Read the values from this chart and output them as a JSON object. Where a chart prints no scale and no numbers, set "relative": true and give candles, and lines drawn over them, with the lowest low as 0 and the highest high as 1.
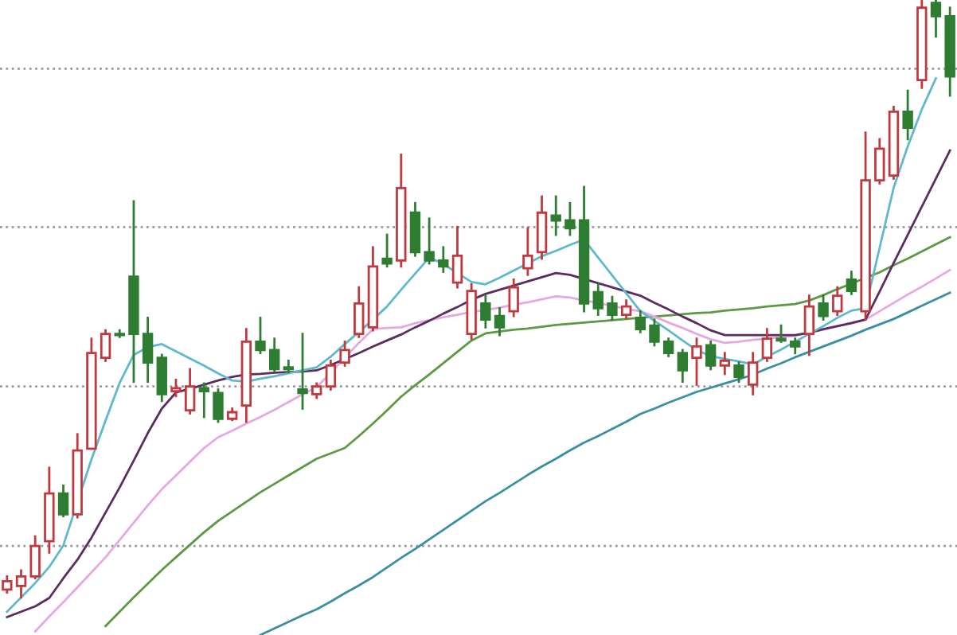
{
  "chart_data": {
    "type": "candlestick",
    "relative": true,
    "categories": [
      null,
      null,
      null,
      null,
      null,
      null,
      null,
      null,
      null,
      null,
      null,
      null,
      null,
      null,
      null,
      null,
      null,
      null,
      null,
      null,
      null,
      null,
      null,
      null,
      null,
      null,
      null,
      null,
      null,
      null,
      null,
      null,
      null,
      null,
      null,
      null,
      null,
      null,
      null,
      null,
      null,
      null,
      null,
      null,
      null,
      null,
      null,
      null,
      null,
      null,
      null,
      null,
      null,
      null,
      null,
      null,
      null,
      null,
      null,
      null,
      null,
      null,
      null,
      null,
      null,
      null,
      null,
      null
    ],
    "ohlc": [
      [
        0.013,
        0.035,
        0.008,
        0.027
      ],
      [
        0.019,
        0.045,
        0.0,
        0.035
      ],
      [
        0.035,
        0.102,
        0.032,
        0.086
      ],
      [
        0.094,
        0.217,
        0.075,
        0.174
      ],
      [
        0.174,
        0.187,
        0.136,
        0.139
      ],
      [
        0.139,
        0.273,
        0.134,
        0.246
      ],
      [
        0.249,
        0.433,
        0.249,
        0.409
      ],
      [
        0.401,
        0.447,
        0.396,
        0.441
      ],
      [
        0.441,
        0.447,
        0.436,
        0.439
      ],
      [
        0.537,
        0.663,
        0.361,
        0.441
      ],
      [
        0.441,
        0.468,
        0.361,
        0.393
      ],
      [
        0.401,
        0.406,
        0.329,
        0.34
      ],
      [
        0.345,
        0.364,
        0.337,
        0.35
      ],
      [
        0.313,
        0.382,
        0.308,
        0.353
      ],
      [
        0.35,
        0.358,
        0.302,
        0.345
      ],
      [
        0.342,
        0.348,
        0.294,
        0.299
      ],
      [
        0.299,
        0.316,
        0.297,
        0.31
      ],
      [
        0.321,
        0.449,
        0.294,
        0.428
      ],
      [
        0.428,
        0.468,
        0.409,
        0.414
      ],
      [
        0.414,
        0.433,
        0.38,
        0.382
      ],
      [
        0.385,
        0.396,
        0.377,
        0.382
      ],
      [
        0.348,
        0.441,
        0.316,
        0.342
      ],
      [
        0.34,
        0.358,
        0.334,
        0.353
      ],
      [
        0.353,
        0.396,
        0.348,
        0.388
      ],
      [
        0.393,
        0.428,
        0.388,
        0.414
      ],
      [
        0.441,
        0.519,
        0.436,
        0.492
      ],
      [
        0.452,
        0.586,
        0.447,
        0.554
      ],
      [
        0.567,
        0.607,
        0.554,
        0.559
      ],
      [
        0.564,
        0.741,
        0.554,
        0.685
      ],
      [
        0.644,
        0.66,
        0.572,
        0.578
      ],
      [
        0.578,
        0.634,
        0.559,
        0.564
      ],
      [
        0.564,
        0.586,
        0.545,
        0.554
      ],
      [
        0.527,
        0.62,
        0.519,
        0.572
      ],
      [
        0.441,
        0.524,
        0.433,
        0.513
      ],
      [
        0.492,
        0.505,
        0.452,
        0.465
      ],
      [
        0.471,
        0.484,
        0.439,
        0.452
      ],
      [
        0.479,
        0.532,
        0.471,
        0.519
      ],
      [
        0.551,
        0.618,
        0.54,
        0.572
      ],
      [
        0.578,
        0.671,
        0.567,
        0.644
      ],
      [
        0.639,
        0.671,
        0.607,
        0.631
      ],
      [
        0.631,
        0.66,
        0.607,
        0.618
      ],
      [
        0.631,
        0.687,
        0.479,
        0.492
      ],
      [
        0.511,
        0.524,
        0.473,
        0.484
      ],
      [
        0.492,
        0.503,
        0.465,
        0.473
      ],
      [
        0.473,
        0.497,
        0.468,
        0.487
      ],
      [
        0.468,
        0.479,
        0.444,
        0.449
      ],
      [
        0.455,
        0.465,
        0.422,
        0.428
      ],
      [
        0.428,
        0.433,
        0.404,
        0.409
      ],
      [
        0.409,
        0.414,
        0.361,
        0.38
      ],
      [
        0.401,
        0.433,
        0.356,
        0.42
      ],
      [
        0.422,
        0.428,
        0.382,
        0.388
      ],
      [
        0.388,
        0.409,
        0.374,
        0.396
      ],
      [
        0.388,
        0.393,
        0.361,
        0.369
      ],
      [
        0.356,
        0.409,
        0.34,
        0.393
      ],
      [
        0.401,
        0.449,
        0.396,
        0.433
      ],
      [
        0.433,
        0.455,
        0.428,
        0.43
      ],
      [
        0.428,
        0.433,
        0.409,
        0.42
      ],
      [
        0.441,
        0.505,
        0.406,
        0.487
      ],
      [
        0.492,
        0.505,
        0.465,
        0.471
      ],
      [
        0.479,
        0.519,
        0.473,
        0.505
      ],
      [
        0.532,
        0.545,
        0.508,
        0.513
      ],
      [
        0.479,
        0.778,
        0.465,
        0.698
      ],
      [
        0.698,
        0.767,
        0.693,
        0.751
      ],
      [
        0.706,
        0.821,
        0.701,
        0.813
      ],
      [
        0.813,
        0.848,
        0.767,
        0.786
      ],
      [
        0.866,
        1.0,
        0.853,
        0.987
      ],
      [
        0.995,
        1.0,
        0.939,
        0.973
      ],
      [
        0.973,
        0.987,
        0.84,
        0.872
      ]
    ],
    "colors": [
      "#c0393f",
      "#c0393f",
      "#c0393f",
      "#c0393f",
      "#2e7d32",
      "#c0393f",
      "#c0393f",
      "#c0393f",
      "#2e7d32",
      "#2e7d32",
      "#2e7d32",
      "#2e7d32",
      "#c0393f",
      "#c0393f",
      "#2e7d32",
      "#2e7d32",
      "#c0393f",
      "#c0393f",
      "#2e7d32",
      "#2e7d32",
      "#2e7d32",
      "#2e7d32",
      "#c0393f",
      "#c0393f",
      "#c0393f",
      "#c0393f",
      "#c0393f",
      "#2e7d32",
      "#c0393f",
      "#2e7d32",
      "#2e7d32",
      "#2e7d32",
      "#c0393f",
      "#c0393f",
      "#2e7d32",
      "#2e7d32",
      "#c0393f",
      "#c0393f",
      "#c0393f",
      "#2e7d32",
      "#2e7d32",
      "#2e7d32",
      "#2e7d32",
      "#2e7d32",
      "#c0393f",
      "#2e7d32",
      "#2e7d32",
      "#2e7d32",
      "#2e7d32",
      "#c0393f",
      "#2e7d32",
      "#c0393f",
      "#2e7d32",
      "#c0393f",
      "#c0393f",
      "#2e7d32",
      "#2e7d32",
      "#c0393f",
      "#2e7d32",
      "#c0393f",
      "#2e7d32",
      "#c0393f",
      "#c0393f",
      "#c0393f",
      "#2e7d32",
      "#c0393f",
      "#2e7d32",
      "#2e7d32"
    ],
    "series": [
      {
        "type": "line",
        "color": "#3a8fa0",
        "values": [
          null,
          null,
          null,
          null,
          null,
          null,
          null,
          null,
          null,
          null,
          null,
          null,
          null,
          null,
          null,
          null,
          null,
          null,
          -0.063,
          -0.052,
          -0.041,
          -0.03,
          -0.02,
          -0.007,
          0.007,
          0.02,
          0.034,
          0.05,
          0.066,
          0.081,
          0.097,
          0.113,
          0.129,
          0.145,
          0.161,
          0.175,
          0.19,
          0.205,
          0.219,
          0.232,
          0.246,
          0.259,
          0.27,
          0.282,
          0.294,
          0.307,
          0.316,
          0.326,
          0.335,
          0.344,
          0.351,
          0.358,
          0.365,
          0.373,
          0.383,
          0.392,
          0.402,
          0.411,
          0.42,
          0.429,
          0.438,
          0.448,
          0.457,
          0.466,
          0.477,
          0.488,
          0.499,
          0.51
        ]
      },
      {
        "type": "line",
        "color": "#5a9a45",
        "values": [
          null,
          null,
          null,
          null,
          null,
          null,
          null,
          -0.048,
          -0.024,
          0.0,
          0.023,
          0.046,
          0.067,
          0.088,
          0.109,
          0.128,
          0.144,
          0.16,
          0.176,
          0.19,
          0.204,
          0.218,
          0.232,
          0.241,
          0.25,
          0.27,
          0.291,
          0.313,
          0.336,
          0.355,
          0.373,
          0.392,
          0.411,
          0.43,
          0.442,
          0.445,
          0.448,
          0.45,
          0.453,
          0.456,
          0.458,
          0.46,
          0.462,
          0.464,
          0.466,
          0.468,
          0.47,
          0.472,
          0.474,
          0.476,
          0.477,
          0.48,
          0.482,
          0.484,
          0.487,
          0.489,
          0.491,
          0.497,
          0.506,
          0.516,
          0.525,
          0.535,
          0.544,
          0.556,
          0.567,
          0.579,
          0.591,
          0.603
        ]
      },
      {
        "type": "line",
        "color": "#e6a8e0",
        "values": [
          null,
          null,
          -0.057,
          -0.032,
          -0.008,
          0.017,
          0.042,
          0.067,
          0.096,
          0.125,
          0.154,
          0.181,
          0.204,
          0.227,
          0.25,
          0.268,
          0.279,
          0.291,
          0.302,
          0.314,
          0.327,
          0.34,
          0.352,
          0.376,
          0.401,
          0.426,
          0.449,
          0.451,
          0.452,
          0.459,
          0.464,
          0.469,
          0.473,
          0.478,
          0.481,
          0.485,
          0.49,
          0.494,
          0.499,
          0.504,
          0.502,
          0.497,
          0.493,
          0.488,
          0.483,
          0.479,
          0.47,
          0.46,
          0.451,
          0.441,
          0.432,
          0.426,
          0.428,
          0.431,
          0.433,
          0.436,
          0.438,
          0.443,
          0.448,
          0.454,
          0.46,
          0.465,
          0.479,
          0.493,
          0.507,
          0.52,
          0.534,
          0.548
        ]
      },
      {
        "type": "line",
        "color": "#5b2c5e",
        "values": [
          -0.033,
          -0.024,
          -0.015,
          -0.001,
          0.032,
          0.063,
          0.1,
          0.142,
          0.184,
          0.229,
          0.275,
          0.316,
          0.343,
          0.349,
          0.356,
          0.363,
          0.369,
          0.373,
          0.374,
          0.376,
          0.377,
          0.378,
          0.38,
          0.389,
          0.399,
          0.409,
          0.42,
          0.43,
          0.44,
          0.452,
          0.463,
          0.475,
          0.486,
          0.498,
          0.508,
          0.515,
          0.522,
          0.529,
          0.536,
          0.543,
          0.54,
          0.533,
          0.526,
          0.519,
          0.512,
          0.505,
          0.493,
          0.482,
          0.47,
          0.459,
          0.447,
          0.439,
          0.439,
          0.439,
          0.439,
          0.439,
          0.439,
          0.443,
          0.449,
          0.454,
          0.459,
          0.465,
          0.512,
          0.56,
          0.607,
          0.654,
          0.701,
          0.748
        ]
      },
      {
        "type": "line",
        "color": "#5fb8cc",
        "values": [
          -0.024,
          0.0,
          0.024,
          0.051,
          0.087,
          null,
          0.231,
          0.296,
          0.359,
          0.406,
          0.419,
          0.424,
          0.412,
          0.4,
          0.388,
          0.375,
          0.363,
          0.361,
          0.366,
          0.37,
          0.375,
          0.38,
          0.385,
          0.403,
          0.424,
          0.444,
          0.465,
          0.487,
          0.515,
          0.542,
          0.569,
          0.558,
          0.543,
          0.528,
          0.524,
          0.535,
          0.547,
          0.559,
          0.571,
          0.58,
          0.59,
          0.599,
          0.569,
          0.539,
          0.509,
          0.479,
          0.463,
          0.447,
          0.43,
          0.414,
          0.404,
          0.399,
          0.395,
          0.39,
          0.403,
          0.415,
          0.428,
          0.441,
          0.454,
          0.468,
          0.48,
          0.484,
          0.585,
          0.686,
          0.755,
          0.817,
          0.869,
          null
        ]
      }
    ],
    "ref_lines": [
      {
        "axis": "y",
        "value": 0.885,
        "color": "#999999",
        "line_style": "dotted"
      },
      {
        "axis": "y",
        "value": 0.62,
        "color": "#999999",
        "line_style": "dotted"
      },
      {
        "axis": "y",
        "value": 0.353,
        "color": "#999999",
        "line_style": "dotted"
      },
      {
        "axis": "y",
        "value": 0.086,
        "color": "#999999",
        "line_style": "dotted"
      }
    ]
  }
}
